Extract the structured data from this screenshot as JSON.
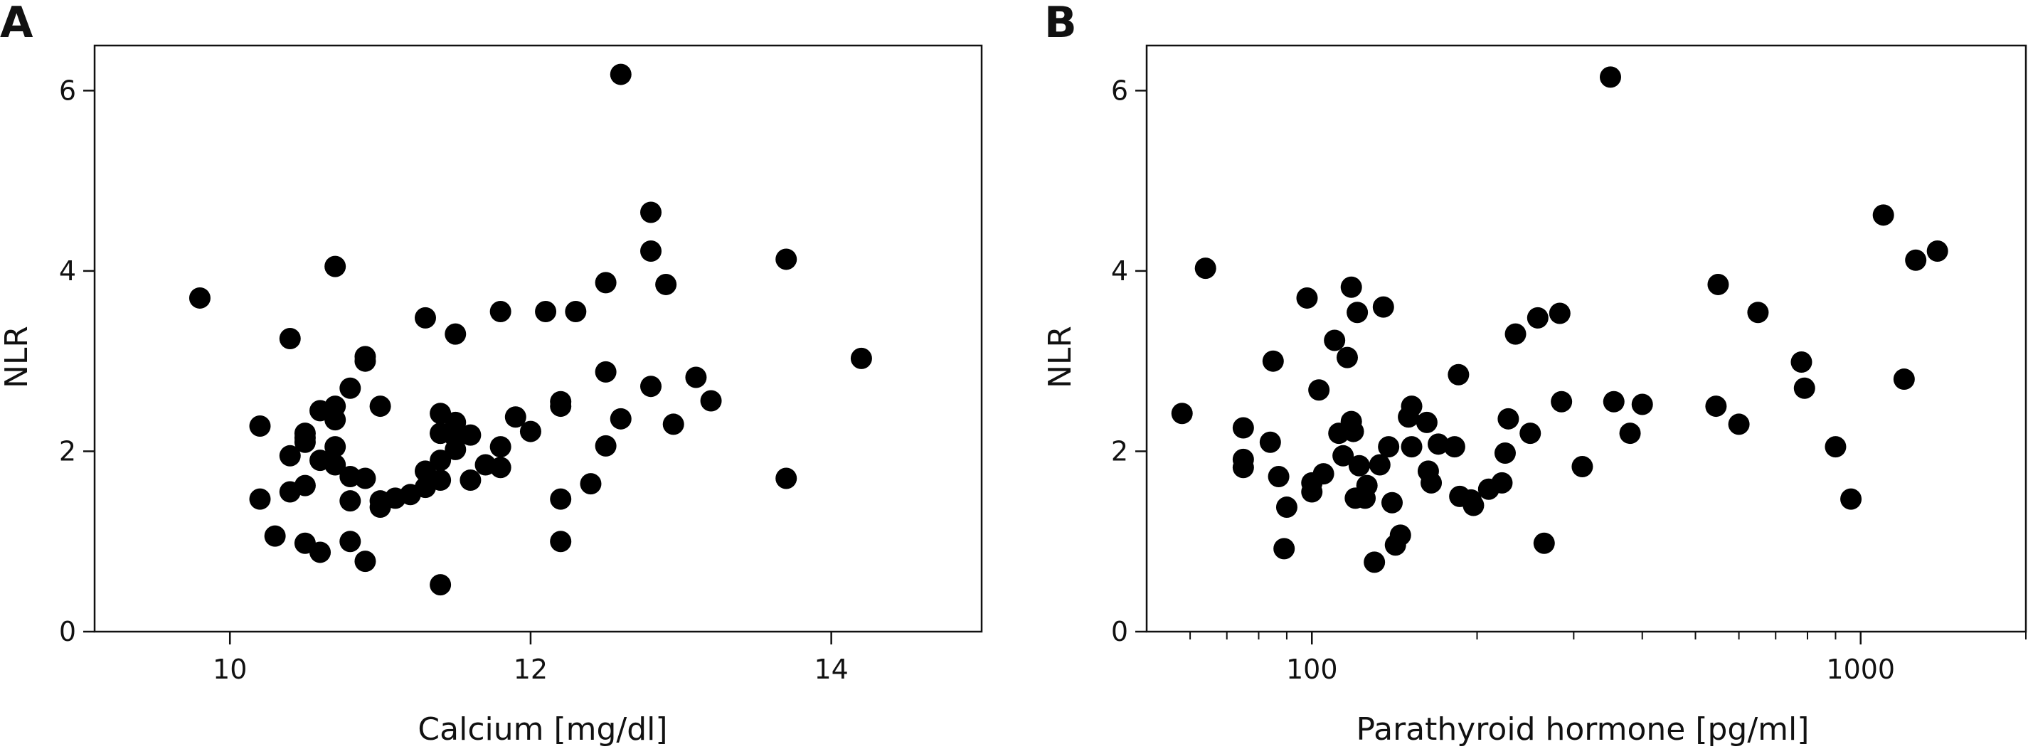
{
  "figure": {
    "panels": [
      "A",
      "B"
    ]
  },
  "chart_data": [
    {
      "type": "scatter",
      "panel_label": "A",
      "title": "",
      "xlabel": "Calcium [mg/dl]",
      "ylabel": "NLR",
      "xlim": [
        9.1,
        15.0
      ],
      "ylim": [
        0,
        6.5
      ],
      "x_scale": "linear",
      "x_ticks": [
        10,
        12,
        14
      ],
      "y_ticks": [
        0,
        2,
        4,
        6
      ],
      "x_tick_labels": [
        "10",
        "12",
        "14"
      ],
      "y_tick_labels": [
        "0",
        "2",
        "4",
        "6"
      ],
      "grid": false,
      "marker_color": "#000000",
      "x": [
        9.8,
        10.7,
        10.4,
        10.2,
        10.2,
        10.3,
        10.4,
        10.4,
        10.5,
        10.5,
        10.5,
        10.5,
        10.5,
        10.6,
        10.6,
        10.6,
        10.7,
        10.7,
        10.7,
        10.7,
        10.8,
        10.8,
        10.8,
        10.8,
        10.9,
        10.9,
        10.9,
        10.9,
        11.0,
        11.0,
        11.0,
        11.1,
        11.2,
        11.3,
        11.3,
        11.3,
        11.4,
        11.4,
        11.4,
        11.4,
        11.4,
        11.5,
        11.5,
        11.5,
        11.5,
        11.4,
        11.6,
        11.6,
        11.7,
        11.8,
        11.8,
        11.8,
        11.9,
        12.0,
        12.1,
        12.2,
        12.2,
        12.2,
        12.2,
        12.3,
        12.4,
        12.5,
        12.5,
        12.5,
        12.6,
        12.6,
        12.8,
        12.8,
        12.8,
        12.9,
        12.95,
        13.1,
        13.2,
        13.7,
        13.7,
        14.2
      ],
      "y": [
        3.7,
        4.05,
        3.25,
        2.28,
        1.47,
        1.06,
        1.95,
        1.55,
        2.2,
        2.15,
        1.62,
        0.98,
        2.1,
        2.45,
        1.9,
        0.88,
        2.5,
        2.35,
        2.05,
        1.85,
        2.7,
        1.72,
        1.45,
        1.0,
        3.05,
        3.0,
        1.7,
        0.78,
        2.5,
        1.45,
        1.38,
        1.48,
        1.52,
        3.48,
        1.78,
        1.6,
        2.42,
        2.2,
        1.9,
        1.68,
        0.52,
        3.3,
        2.32,
        2.15,
        2.02,
        2.2,
        2.18,
        1.68,
        1.85,
        3.55,
        2.05,
        1.82,
        2.38,
        2.22,
        3.55,
        2.55,
        2.5,
        1.47,
        1.0,
        3.55,
        1.64,
        3.87,
        2.88,
        2.06,
        6.18,
        2.36,
        4.65,
        4.22,
        2.72,
        3.85,
        2.3,
        2.82,
        2.56,
        4.13,
        1.7,
        3.03
      ]
    },
    {
      "type": "scatter",
      "panel_label": "B",
      "title": "",
      "xlabel": "Parathyroid hormone [pg/ml]",
      "ylabel": "NLR",
      "xlim": [
        50,
        2000
      ],
      "ylim": [
        0,
        6.5
      ],
      "x_scale": "log",
      "x_ticks": [
        100,
        1000
      ],
      "x_minor_ticks": [
        60,
        70,
        80,
        90,
        200,
        300,
        400,
        500,
        600,
        700,
        800,
        900,
        2000
      ],
      "y_ticks": [
        0,
        2,
        4,
        6
      ],
      "x_tick_labels": [
        "100",
        "1000"
      ],
      "y_tick_labels": [
        "0",
        "2",
        "4",
        "6"
      ],
      "grid": false,
      "marker_color": "#000000",
      "x": [
        58,
        64,
        75,
        75,
        75,
        84,
        85,
        87,
        89,
        90,
        98,
        100,
        100,
        103,
        105,
        110,
        112,
        114,
        116,
        118,
        118,
        119,
        120,
        121,
        122,
        125,
        126,
        130,
        133,
        135,
        138,
        140,
        142,
        145,
        150,
        152,
        152,
        162,
        163,
        165,
        170,
        182,
        185,
        186,
        195,
        197,
        210,
        222,
        225,
        228,
        235,
        250,
        258,
        265,
        283,
        285,
        311,
        350,
        355,
        380,
        400,
        545,
        550,
        600,
        650,
        780,
        790,
        900,
        960,
        1100,
        1200,
        1260,
        1380
      ],
      "y": [
        2.42,
        4.03,
        2.26,
        1.91,
        1.82,
        2.1,
        3.0,
        1.72,
        0.92,
        1.38,
        3.7,
        1.55,
        1.65,
        2.68,
        1.75,
        3.23,
        2.2,
        1.95,
        3.04,
        3.82,
        2.33,
        2.22,
        1.48,
        3.54,
        1.84,
        1.48,
        1.62,
        0.77,
        1.85,
        3.6,
        2.05,
        1.43,
        0.96,
        1.07,
        2.38,
        2.05,
        2.5,
        2.32,
        1.78,
        1.65,
        2.08,
        2.05,
        2.85,
        1.5,
        1.46,
        1.4,
        1.58,
        1.65,
        1.98,
        2.36,
        3.3,
        2.2,
        3.48,
        0.98,
        3.53,
        2.55,
        1.83,
        6.15,
        2.55,
        2.2,
        2.52,
        2.5,
        3.85,
        2.3,
        3.54,
        2.99,
        2.7,
        2.05,
        1.47,
        4.62,
        2.8,
        4.12,
        4.22
      ]
    }
  ]
}
